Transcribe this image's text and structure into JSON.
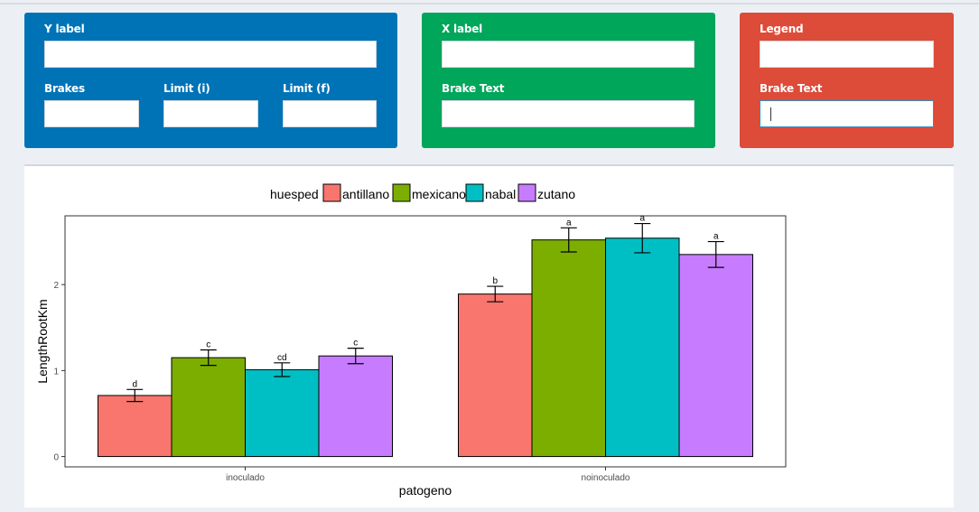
{
  "panels": {
    "y": {
      "y_label": "Y label",
      "brakes_label": "Brakes",
      "limit_i_label": "Limit (i)",
      "limit_f_label": "Limit (f)"
    },
    "x": {
      "x_label": "X label",
      "brake_text_label": "Brake Text"
    },
    "legend": {
      "legend_label": "Legend",
      "brake_text_label": "Brake Text"
    }
  },
  "colors": {
    "blue": "#0073b7",
    "green": "#00a65a",
    "red": "#dd4b39"
  },
  "chart_data": {
    "type": "bar",
    "title": "",
    "xlabel": "patogeno",
    "ylabel": "LengthRootKm",
    "legend_title": "huesped",
    "legend_position": "top",
    "categories": [
      "inoculado",
      "noinoculado"
    ],
    "yticks": [
      0,
      1,
      2
    ],
    "ylim": [
      -0.12,
      2.8
    ],
    "grid": false,
    "series": [
      {
        "name": "antillano",
        "color": "#f8766d",
        "values": [
          0.71,
          1.89
        ],
        "errors": [
          0.07,
          0.09
        ],
        "labels": [
          "d",
          "b"
        ]
      },
      {
        "name": "mexicano",
        "color": "#7cae00",
        "values": [
          1.15,
          2.52
        ],
        "errors": [
          0.09,
          0.14
        ],
        "labels": [
          "c",
          "a"
        ]
      },
      {
        "name": "nabal",
        "color": "#00bfc4",
        "values": [
          1.01,
          2.54
        ],
        "errors": [
          0.08,
          0.17
        ],
        "labels": [
          "cd",
          "a"
        ]
      },
      {
        "name": "zutano",
        "color": "#c77cff",
        "values": [
          1.17,
          2.35
        ],
        "errors": [
          0.09,
          0.15
        ],
        "labels": [
          "c",
          "a"
        ]
      }
    ]
  }
}
